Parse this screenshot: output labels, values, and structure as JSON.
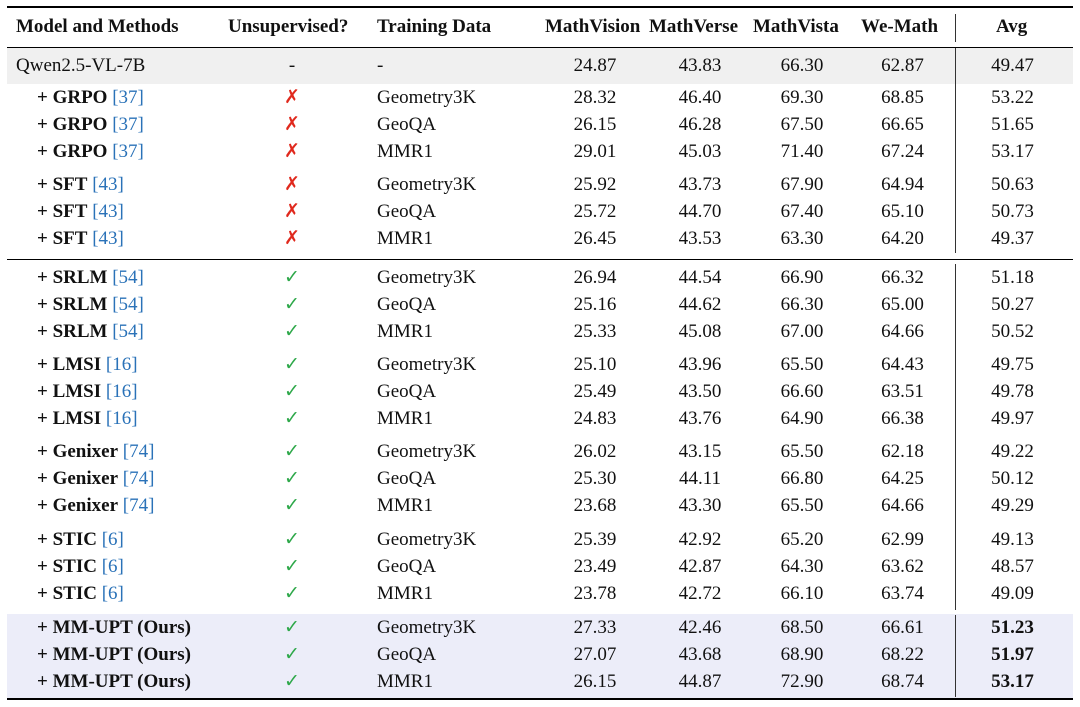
{
  "colors": {
    "citation": "#2a72b8",
    "cross": "#e0291d",
    "check": "#2ea84a",
    "base_row_bg": "#f0f0f0",
    "ours_row_bg": "#ecedf9"
  },
  "header": {
    "model": "Model and Methods",
    "unsupervised": "Unsupervised?",
    "training_data": "Training Data",
    "mathvision": "MathVision",
    "mathverse": "MathVerse",
    "mathvista": "MathVista",
    "wemath": "We-Math",
    "avg": "Avg"
  },
  "rows": [
    {
      "model": "Qwen2.5-VL-7B",
      "unsupervised": "-",
      "training_data": "-",
      "mathvision": "24.87",
      "mathverse": "43.83",
      "mathvista": "66.30",
      "wemath": "62.87",
      "avg": "49.47"
    },
    {
      "prefix": "+ ",
      "method": "GRPO",
      "ref": "[37]",
      "unsupervised": "✗",
      "training_data": "Geometry3K",
      "mathvision": "28.32",
      "mathverse": "46.40",
      "mathvista": "69.30",
      "wemath": "68.85",
      "avg": "53.22"
    },
    {
      "prefix": "+ ",
      "method": "GRPO",
      "ref": "[37]",
      "unsupervised": "✗",
      "training_data": "GeoQA",
      "mathvision": "26.15",
      "mathverse": "46.28",
      "mathvista": "67.50",
      "wemath": "66.65",
      "avg": "51.65"
    },
    {
      "prefix": "+ ",
      "method": "GRPO",
      "ref": "[37]",
      "unsupervised": "✗",
      "training_data": "MMR1",
      "mathvision": "29.01",
      "mathverse": "45.03",
      "mathvista": "71.40",
      "wemath": "67.24",
      "avg": "53.17"
    },
    {
      "prefix": "+ ",
      "method": "SFT",
      "ref": "[43]",
      "unsupervised": "✗",
      "training_data": "Geometry3K",
      "mathvision": "25.92",
      "mathverse": "43.73",
      "mathvista": "67.90",
      "wemath": "64.94",
      "avg": "50.63"
    },
    {
      "prefix": "+ ",
      "method": "SFT",
      "ref": "[43]",
      "unsupervised": "✗",
      "training_data": "GeoQA",
      "mathvision": "25.72",
      "mathverse": "44.70",
      "mathvista": "67.40",
      "wemath": "65.10",
      "avg": "50.73"
    },
    {
      "prefix": "+ ",
      "method": "SFT",
      "ref": "[43]",
      "unsupervised": "✗",
      "training_data": "MMR1",
      "mathvision": "26.45",
      "mathverse": "43.53",
      "mathvista": "63.30",
      "wemath": "64.20",
      "avg": "49.37"
    },
    {
      "prefix": "+ ",
      "method": "SRLM",
      "ref": "[54]",
      "unsupervised": "✓",
      "training_data": "Geometry3K",
      "mathvision": "26.94",
      "mathverse": "44.54",
      "mathvista": "66.90",
      "wemath": "66.32",
      "avg": "51.18"
    },
    {
      "prefix": "+ ",
      "method": "SRLM",
      "ref": "[54]",
      "unsupervised": "✓",
      "training_data": "GeoQA",
      "mathvision": "25.16",
      "mathverse": "44.62",
      "mathvista": "66.30",
      "wemath": "65.00",
      "avg": "50.27"
    },
    {
      "prefix": "+ ",
      "method": "SRLM",
      "ref": "[54]",
      "unsupervised": "✓",
      "training_data": "MMR1",
      "mathvision": "25.33",
      "mathverse": "45.08",
      "mathvista": "67.00",
      "wemath": "64.66",
      "avg": "50.52"
    },
    {
      "prefix": "+ ",
      "method": "LMSI",
      "ref": "[16]",
      "unsupervised": "✓",
      "training_data": "Geometry3K",
      "mathvision": "25.10",
      "mathverse": "43.96",
      "mathvista": "65.50",
      "wemath": "64.43",
      "avg": "49.75"
    },
    {
      "prefix": "+ ",
      "method": "LMSI",
      "ref": "[16]",
      "unsupervised": "✓",
      "training_data": "GeoQA",
      "mathvision": "25.49",
      "mathverse": "43.50",
      "mathvista": "66.60",
      "wemath": "63.51",
      "avg": "49.78"
    },
    {
      "prefix": "+ ",
      "method": "LMSI",
      "ref": "[16]",
      "unsupervised": "✓",
      "training_data": "MMR1",
      "mathvision": "24.83",
      "mathverse": "43.76",
      "mathvista": "64.90",
      "wemath": "66.38",
      "avg": "49.97"
    },
    {
      "prefix": "+ ",
      "method": "Genixer",
      "ref": "[74]",
      "unsupervised": "✓",
      "training_data": "Geometry3K",
      "mathvision": "26.02",
      "mathverse": "43.15",
      "mathvista": "65.50",
      "wemath": "62.18",
      "avg": "49.22"
    },
    {
      "prefix": "+ ",
      "method": "Genixer",
      "ref": "[74]",
      "unsupervised": "✓",
      "training_data": "GeoQA",
      "mathvision": "25.30",
      "mathverse": "44.11",
      "mathvista": "66.80",
      "wemath": "64.25",
      "avg": "50.12"
    },
    {
      "prefix": "+ ",
      "method": "Genixer",
      "ref": "[74]",
      "unsupervised": "✓",
      "training_data": "MMR1",
      "mathvision": "23.68",
      "mathverse": "43.30",
      "mathvista": "65.50",
      "wemath": "64.66",
      "avg": "49.29"
    },
    {
      "prefix": "+ ",
      "method": "STIC",
      "ref": "[6]",
      "unsupervised": "✓",
      "training_data": "Geometry3K",
      "mathvision": "25.39",
      "mathverse": "42.92",
      "mathvista": "65.20",
      "wemath": "62.99",
      "avg": "49.13"
    },
    {
      "prefix": "+ ",
      "method": "STIC",
      "ref": "[6]",
      "unsupervised": "✓",
      "training_data": "GeoQA",
      "mathvision": "23.49",
      "mathverse": "42.87",
      "mathvista": "64.30",
      "wemath": "63.62",
      "avg": "48.57"
    },
    {
      "prefix": "+ ",
      "method": "STIC",
      "ref": "[6]",
      "unsupervised": "✓",
      "training_data": "MMR1",
      "mathvision": "23.78",
      "mathverse": "42.72",
      "mathvista": "66.10",
      "wemath": "63.74",
      "avg": "49.09"
    },
    {
      "prefix": "+ ",
      "method": "MM-UPT (Ours)",
      "ref": "",
      "unsupervised": "✓",
      "training_data": "Geometry3K",
      "mathvision": "27.33",
      "mathverse": "42.46",
      "mathvista": "68.50",
      "wemath": "66.61",
      "avg": "51.23"
    },
    {
      "prefix": "+ ",
      "method": "MM-UPT (Ours)",
      "ref": "",
      "unsupervised": "✓",
      "training_data": "GeoQA",
      "mathvision": "27.07",
      "mathverse": "43.68",
      "mathvista": "68.90",
      "wemath": "68.22",
      "avg": "51.97"
    },
    {
      "prefix": "+ ",
      "method": "MM-UPT (Ours)",
      "ref": "",
      "unsupervised": "✓",
      "training_data": "MMR1",
      "mathvision": "26.15",
      "mathverse": "44.87",
      "mathvista": "72.90",
      "wemath": "68.74",
      "avg": "53.17"
    }
  ]
}
